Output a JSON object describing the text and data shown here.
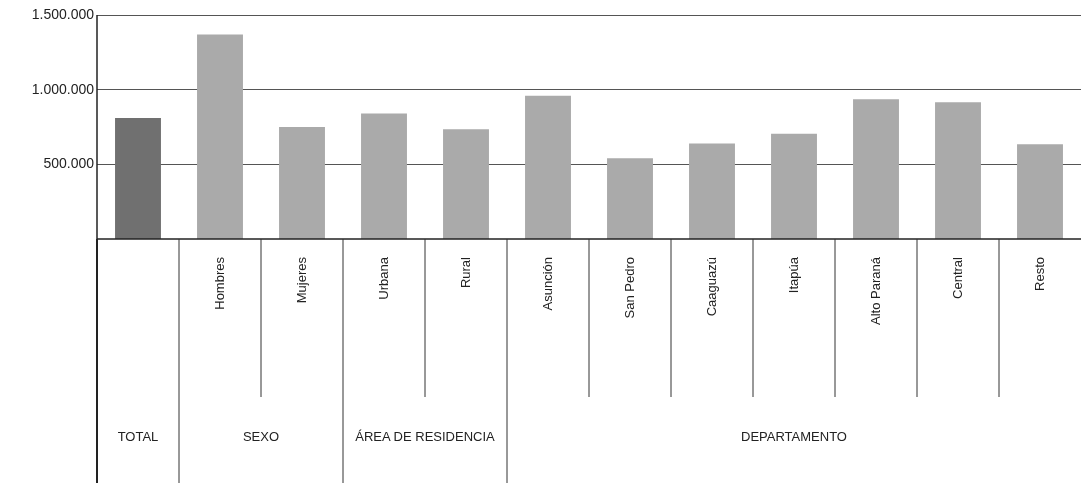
{
  "chart_data": {
    "type": "bar",
    "categories": [
      null,
      "Hombres",
      "Mujeres",
      "Urbana",
      "Rural",
      "Asunción",
      "San Pedro",
      "Caaguazú",
      "Itapúa",
      "Alto Paraná",
      "Central",
      "Resto"
    ],
    "values": [
      810000,
      1370000,
      750000,
      840000,
      735000,
      960000,
      540000,
      640000,
      705000,
      935000,
      915000,
      635000
    ],
    "colors": [
      "#707070",
      "#aaaaaa",
      "#aaaaaa",
      "#aaaaaa",
      "#aaaaaa",
      "#aaaaaa",
      "#aaaaaa",
      "#aaaaaa",
      "#aaaaaa",
      "#aaaaaa",
      "#aaaaaa",
      "#aaaaaa"
    ],
    "ylim": [
      0,
      1500000
    ],
    "yticks": [
      {
        "value": 500000,
        "label": "500.000"
      },
      {
        "value": 1000000,
        "label": "1.000.000"
      },
      {
        "value": 1500000,
        "label": "1.500.000"
      }
    ],
    "grid": "y",
    "annotations": [
      "TOTAL",
      "SEXO",
      "ÁREA DE RESIDENCIA",
      "DEPARTAMENTO"
    ]
  }
}
